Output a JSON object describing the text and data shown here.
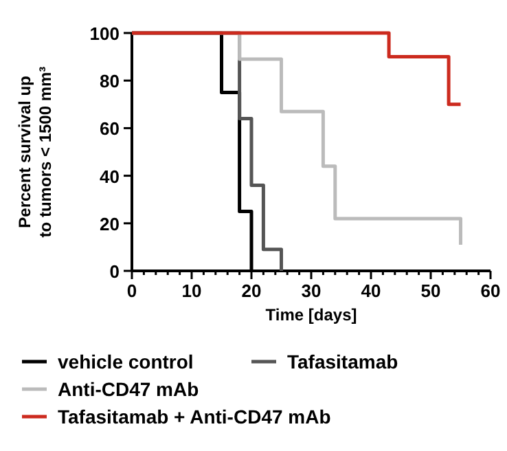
{
  "chart_data": {
    "type": "step",
    "xlabel": "Time [days]",
    "ylabel": "Percent survival up to tumors < 1500 mm³",
    "xlim": [
      0,
      60
    ],
    "ylim": [
      0,
      100
    ],
    "xticks": [
      0,
      {
        "value": 2,
        "label": null
      },
      {
        "value": 4,
        "label": null
      },
      {
        "value": 6,
        "label": null
      },
      {
        "value": 8,
        "label": null
      },
      10,
      {
        "value": 12,
        "label": null
      },
      {
        "value": 14,
        "label": null
      },
      {
        "value": 16,
        "label": null
      },
      {
        "value": 18,
        "label": null
      },
      20,
      {
        "value": 22,
        "label": null
      },
      {
        "value": 24,
        "label": null
      },
      {
        "value": 26,
        "label": null
      },
      {
        "value": 28,
        "label": null
      },
      30,
      {
        "value": 32,
        "label": null
      },
      {
        "value": 34,
        "label": null
      },
      {
        "value": 36,
        "label": null
      },
      {
        "value": 38,
        "label": null
      },
      40,
      {
        "value": 42,
        "label": null
      },
      {
        "value": 44,
        "label": null
      },
      {
        "value": 46,
        "label": null
      },
      {
        "value": 48,
        "label": null
      },
      50,
      {
        "value": 52,
        "label": null
      },
      {
        "value": 54,
        "label": null
      },
      {
        "value": 56,
        "label": null
      },
      {
        "value": 58,
        "label": null
      },
      60
    ],
    "yticks": [
      0,
      20,
      40,
      60,
      80,
      100
    ],
    "grid": false,
    "legend": "bottom",
    "series": [
      {
        "name": "vehicle control",
        "color": "#000000",
        "x": [
          0,
          15,
          18,
          20
        ],
        "values": [
          100,
          75,
          25,
          0
        ]
      },
      {
        "name": "Tafasitamab",
        "color": "#555555",
        "x": [
          0,
          18,
          20,
          22,
          25
        ],
        "values": [
          100,
          64,
          36,
          9,
          0
        ]
      },
      {
        "name": "Anti-CD47 mAb",
        "color": "#bbbbbb",
        "x": [
          0,
          18,
          25,
          32,
          34,
          55
        ],
        "values": [
          100,
          89,
          67,
          44,
          22,
          11
        ]
      },
      {
        "name": "Tafasitamab + Anti-CD47 mAb",
        "color": "#cc2a1e",
        "x": [
          0,
          43,
          53,
          55
        ],
        "values": [
          100,
          90,
          70,
          70
        ]
      }
    ]
  }
}
